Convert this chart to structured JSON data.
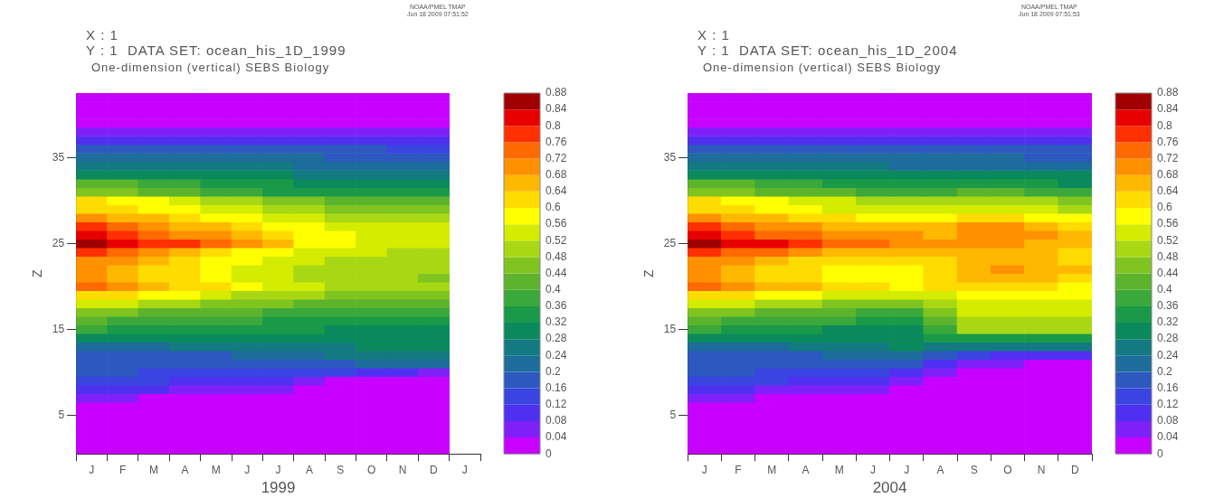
{
  "chart_data": [
    {
      "type": "heatmap",
      "title": "One-dimension (vertical) SEBS Biology",
      "xlabel": "1999",
      "ylabel": "Z",
      "annotations": [
        "X : 1",
        "Y : 1  DATA SET: ocean_his_1D_1999",
        "NOAA/PMEL TMAP",
        "Jun 18 2009 07:51:52"
      ],
      "categories": [
        "J",
        "F",
        "M",
        "A",
        "M",
        "J",
        "J",
        "A",
        "S",
        "O",
        "N",
        "D",
        "J"
      ],
      "y_categories": [
        null,
        null,
        null,
        null,
        null,
        null,
        null,
        "35",
        null,
        null,
        null,
        null,
        null,
        null,
        null,
        null,
        null,
        "25",
        null,
        null,
        null,
        null,
        null,
        null,
        null,
        null,
        null,
        "15",
        null,
        null,
        null,
        null,
        null,
        null,
        null,
        null,
        null,
        "5",
        null,
        null,
        null,
        null
      ],
      "clim": [
        0,
        0.88
      ],
      "cticks": [
        0,
        0.04,
        0.08,
        0.12,
        0.16,
        0.2,
        0.24,
        0.28,
        0.32,
        0.36,
        0.4,
        0.44,
        0.48,
        0.52,
        0.56,
        0.6,
        0.64,
        0.68,
        0.72,
        0.76,
        0.8,
        0.84,
        0.88
      ],
      "cells": [
        [
          0,
          0,
          0,
          0,
          0,
          0,
          0,
          0,
          0,
          0,
          0,
          0,
          null
        ],
        [
          0,
          0,
          0,
          0,
          0,
          0,
          0,
          0,
          0,
          0,
          0,
          0,
          null
        ],
        [
          0,
          0,
          0,
          0,
          0,
          0,
          0,
          0,
          0,
          0,
          0,
          0,
          null
        ],
        [
          0,
          0,
          0,
          0,
          0,
          0,
          0,
          0,
          0,
          0,
          0,
          0,
          null
        ],
        [
          0.04,
          0.04,
          0.04,
          0.04,
          0.04,
          0.04,
          0.04,
          0.04,
          0.04,
          0.04,
          0.04,
          0.04,
          null
        ],
        [
          0.1,
          0.1,
          0.1,
          0.1,
          0.1,
          0.08,
          0.08,
          0.08,
          0.08,
          0.08,
          0.08,
          0.08,
          null
        ],
        [
          0.16,
          0.16,
          0.16,
          0.16,
          0.16,
          0.16,
          0.16,
          0.16,
          0.16,
          0.16,
          0.12,
          0.12,
          null
        ],
        [
          0.2,
          0.2,
          0.2,
          0.2,
          0.2,
          0.2,
          0.2,
          0.2,
          0.18,
          0.18,
          0.16,
          0.16,
          null
        ],
        [
          0.24,
          0.24,
          0.24,
          0.24,
          0.24,
          0.24,
          0.24,
          0.22,
          0.22,
          0.2,
          0.2,
          0.2,
          null
        ],
        [
          0.3,
          0.28,
          0.28,
          0.28,
          0.28,
          0.28,
          0.28,
          0.26,
          0.26,
          0.24,
          0.24,
          0.24,
          null
        ],
        [
          0.42,
          0.4,
          0.38,
          0.36,
          0.34,
          0.32,
          0.32,
          0.3,
          0.3,
          0.28,
          0.28,
          0.28,
          null
        ],
        [
          0.46,
          0.44,
          0.42,
          0.4,
          0.38,
          0.36,
          0.34,
          0.34,
          0.32,
          0.32,
          0.32,
          0.32,
          null
        ],
        [
          0.6,
          0.58,
          0.56,
          0.52,
          0.5,
          0.48,
          0.46,
          0.44,
          0.42,
          0.42,
          0.4,
          0.4,
          null
        ],
        [
          0.62,
          0.6,
          0.58,
          0.56,
          0.54,
          0.52,
          0.5,
          0.48,
          0.46,
          0.46,
          0.44,
          0.44,
          null
        ],
        [
          0.68,
          0.66,
          0.64,
          0.6,
          0.58,
          0.56,
          0.54,
          0.52,
          0.5,
          0.48,
          0.48,
          0.48,
          null
        ],
        [
          0.76,
          0.74,
          0.7,
          0.66,
          0.64,
          0.6,
          0.58,
          0.56,
          0.54,
          0.52,
          0.52,
          0.52,
          null
        ],
        [
          0.8,
          0.78,
          0.74,
          0.7,
          0.68,
          0.64,
          0.6,
          0.58,
          0.56,
          0.54,
          0.52,
          0.52,
          null
        ],
        [
          0.86,
          0.82,
          0.78,
          0.76,
          0.72,
          0.68,
          0.64,
          0.58,
          0.56,
          0.54,
          0.52,
          0.52,
          null
        ],
        [
          0.76,
          0.74,
          0.7,
          0.66,
          0.62,
          0.58,
          0.56,
          0.54,
          0.52,
          0.52,
          0.5,
          0.5,
          null
        ],
        [
          0.7,
          0.68,
          0.64,
          0.6,
          0.58,
          0.56,
          0.54,
          0.52,
          0.5,
          0.5,
          0.48,
          0.48,
          null
        ],
        [
          0.68,
          0.66,
          0.62,
          0.6,
          0.56,
          0.54,
          0.52,
          0.5,
          0.5,
          0.48,
          0.48,
          0.48,
          null
        ],
        [
          0.68,
          0.66,
          0.62,
          0.6,
          0.56,
          0.54,
          0.52,
          0.5,
          0.5,
          0.48,
          0.48,
          0.46,
          null
        ],
        [
          0.72,
          0.7,
          0.66,
          0.62,
          0.6,
          0.58,
          0.54,
          0.52,
          0.5,
          0.5,
          0.48,
          0.48,
          null
        ],
        [
          0.62,
          0.6,
          0.58,
          0.56,
          0.52,
          0.5,
          0.48,
          0.48,
          0.46,
          0.46,
          0.44,
          0.44,
          null
        ],
        [
          0.54,
          0.52,
          0.5,
          0.48,
          0.46,
          0.44,
          0.44,
          0.42,
          0.42,
          0.4,
          0.4,
          0.4,
          null
        ],
        [
          0.44,
          0.44,
          0.42,
          0.42,
          0.4,
          0.4,
          0.38,
          0.38,
          0.38,
          0.36,
          0.36,
          0.36,
          null
        ],
        [
          0.4,
          0.38,
          0.38,
          0.36,
          0.36,
          0.36,
          0.34,
          0.34,
          0.34,
          0.32,
          0.32,
          0.32,
          null
        ],
        [
          0.36,
          0.34,
          0.34,
          0.32,
          0.32,
          0.32,
          0.32,
          0.32,
          0.3,
          0.3,
          0.3,
          0.3,
          null
        ],
        [
          0.3,
          0.3,
          0.28,
          0.28,
          0.28,
          0.28,
          0.28,
          0.28,
          0.28,
          0.28,
          0.28,
          0.28,
          null
        ],
        [
          0.22,
          0.22,
          0.22,
          0.24,
          0.24,
          0.24,
          0.24,
          0.26,
          0.26,
          0.28,
          0.28,
          0.28,
          null
        ],
        [
          0.16,
          0.16,
          0.18,
          0.18,
          0.18,
          0.2,
          0.2,
          0.22,
          0.24,
          0.26,
          0.26,
          0.26,
          null
        ],
        [
          0.16,
          0.16,
          0.16,
          0.16,
          0.16,
          0.16,
          0.16,
          0.18,
          0.18,
          0.2,
          0.2,
          0.2,
          null
        ],
        [
          0.16,
          0.16,
          0.14,
          0.14,
          0.14,
          0.14,
          0.12,
          0.12,
          0.12,
          0.08,
          0.08,
          0.06,
          null
        ],
        [
          0.12,
          0.12,
          0.12,
          0.1,
          0.1,
          0.1,
          0.08,
          0.04,
          0,
          0,
          0,
          0,
          null
        ],
        [
          0.1,
          0.1,
          0.08,
          0.06,
          0.06,
          0.04,
          0.04,
          0,
          0,
          0,
          0,
          0,
          null
        ],
        [
          0.04,
          0.04,
          0,
          0,
          0,
          0,
          0,
          0,
          0,
          0,
          0,
          0,
          null
        ],
        [
          0,
          0,
          0,
          0,
          0,
          0,
          0,
          0,
          0,
          0,
          0,
          0,
          null
        ],
        [
          0,
          0,
          0,
          0,
          0,
          0,
          0,
          0,
          0,
          0,
          0,
          0,
          null
        ],
        [
          0,
          0,
          0,
          0,
          0,
          0,
          0,
          0,
          0,
          0,
          0,
          0,
          null
        ],
        [
          0,
          0,
          0,
          0,
          0,
          0,
          0,
          0,
          0,
          0,
          0,
          0,
          null
        ],
        [
          0,
          0,
          0,
          0,
          0,
          0,
          0,
          0,
          0,
          0,
          0,
          0,
          null
        ],
        [
          0,
          0,
          0,
          0,
          0,
          0,
          0,
          0,
          0,
          0,
          0,
          0,
          null
        ]
      ]
    },
    {
      "type": "heatmap",
      "title": "One-dimension (vertical) SEBS Biology",
      "xlabel": "2004",
      "ylabel": "Z",
      "annotations": [
        "X : 1",
        "Y : 1  DATA SET: ocean_his_1D_2004",
        "NOAA/PMEL TMAP",
        "Jun 18 2009 07:51:53"
      ],
      "categories": [
        "J",
        "F",
        "M",
        "A",
        "M",
        "J",
        "J",
        "A",
        "S",
        "O",
        "N",
        "D"
      ],
      "y_categories": [
        null,
        null,
        null,
        null,
        null,
        null,
        null,
        "35",
        null,
        null,
        null,
        null,
        null,
        null,
        null,
        null,
        null,
        "25",
        null,
        null,
        null,
        null,
        null,
        null,
        null,
        null,
        null,
        "15",
        null,
        null,
        null,
        null,
        null,
        null,
        null,
        null,
        null,
        "5",
        null,
        null,
        null,
        null
      ],
      "clim": [
        0,
        0.88
      ],
      "cticks": [
        0,
        0.04,
        0.08,
        0.12,
        0.16,
        0.2,
        0.24,
        0.28,
        0.32,
        0.36,
        0.4,
        0.44,
        0.48,
        0.52,
        0.56,
        0.6,
        0.64,
        0.68,
        0.72,
        0.76,
        0.8,
        0.84,
        0.88
      ],
      "cells": [
        [
          0,
          0,
          0,
          0,
          0,
          0,
          0,
          0,
          0,
          0,
          0,
          0
        ],
        [
          0,
          0,
          0,
          0,
          0,
          0,
          0,
          0,
          0,
          0,
          0,
          0
        ],
        [
          0,
          0,
          0,
          0,
          0,
          0,
          0,
          0,
          0,
          0,
          0,
          0
        ],
        [
          0,
          0,
          0,
          0,
          0,
          0,
          0,
          0,
          0,
          0,
          0,
          0
        ],
        [
          0.04,
          0.04,
          0.04,
          0.04,
          0.04,
          0.04,
          0.04,
          0.04,
          0.04,
          0.04,
          0.04,
          0.04
        ],
        [
          0.1,
          0.1,
          0.1,
          0.1,
          0.1,
          0.1,
          0.1,
          0.1,
          0.08,
          0.08,
          0.1,
          0.1
        ],
        [
          0.16,
          0.16,
          0.16,
          0.16,
          0.16,
          0.16,
          0.16,
          0.16,
          0.16,
          0.16,
          0.16,
          0.16
        ],
        [
          0.2,
          0.2,
          0.2,
          0.2,
          0.2,
          0.2,
          0.2,
          0.2,
          0.2,
          0.2,
          0.18,
          0.18
        ],
        [
          0.24,
          0.24,
          0.24,
          0.24,
          0.24,
          0.24,
          0.22,
          0.22,
          0.22,
          0.22,
          0.22,
          0.22
        ],
        [
          0.3,
          0.28,
          0.28,
          0.28,
          0.28,
          0.28,
          0.28,
          0.28,
          0.28,
          0.28,
          0.28,
          0.28
        ],
        [
          0.42,
          0.4,
          0.38,
          0.36,
          0.34,
          0.32,
          0.32,
          0.32,
          0.34,
          0.34,
          0.32,
          0.3
        ],
        [
          0.46,
          0.44,
          0.42,
          0.4,
          0.4,
          0.38,
          0.38,
          0.38,
          0.4,
          0.4,
          0.38,
          0.36
        ],
        [
          0.6,
          0.58,
          0.56,
          0.54,
          0.52,
          0.5,
          0.48,
          0.48,
          0.5,
          0.5,
          0.48,
          0.44
        ],
        [
          0.62,
          0.6,
          0.58,
          0.56,
          0.54,
          0.52,
          0.52,
          0.52,
          0.54,
          0.54,
          0.52,
          0.5
        ],
        [
          0.68,
          0.66,
          0.64,
          0.62,
          0.6,
          0.58,
          0.58,
          0.58,
          0.6,
          0.6,
          0.58,
          0.56
        ],
        [
          0.78,
          0.74,
          0.7,
          0.68,
          0.66,
          0.64,
          0.64,
          0.64,
          0.68,
          0.68,
          0.66,
          0.62
        ],
        [
          0.8,
          0.78,
          0.74,
          0.72,
          0.7,
          0.68,
          0.68,
          0.66,
          0.7,
          0.7,
          0.68,
          0.64
        ],
        [
          0.86,
          0.82,
          0.8,
          0.76,
          0.74,
          0.72,
          0.7,
          0.68,
          0.7,
          0.7,
          0.66,
          0.64
        ],
        [
          0.78,
          0.74,
          0.72,
          0.68,
          0.66,
          0.64,
          0.64,
          0.64,
          0.66,
          0.66,
          0.64,
          0.62
        ],
        [
          0.7,
          0.68,
          0.64,
          0.62,
          0.6,
          0.6,
          0.6,
          0.62,
          0.66,
          0.66,
          0.64,
          0.62
        ],
        [
          0.68,
          0.66,
          0.62,
          0.6,
          0.58,
          0.56,
          0.58,
          0.62,
          0.66,
          0.7,
          0.66,
          0.64
        ],
        [
          0.68,
          0.66,
          0.62,
          0.6,
          0.58,
          0.56,
          0.58,
          0.62,
          0.66,
          0.66,
          0.64,
          0.62
        ],
        [
          0.72,
          0.7,
          0.66,
          0.64,
          0.62,
          0.6,
          0.58,
          0.6,
          0.62,
          0.62,
          0.6,
          0.58
        ],
        [
          0.62,
          0.6,
          0.58,
          0.56,
          0.54,
          0.54,
          0.52,
          0.54,
          0.58,
          0.58,
          0.56,
          0.56
        ],
        [
          0.54,
          0.52,
          0.5,
          0.48,
          0.46,
          0.46,
          0.44,
          0.48,
          0.54,
          0.54,
          0.54,
          0.54
        ],
        [
          0.44,
          0.44,
          0.42,
          0.4,
          0.4,
          0.38,
          0.38,
          0.44,
          0.52,
          0.52,
          0.52,
          0.52
        ],
        [
          0.4,
          0.38,
          0.38,
          0.36,
          0.36,
          0.34,
          0.34,
          0.4,
          0.5,
          0.5,
          0.5,
          0.5
        ],
        [
          0.36,
          0.34,
          0.32,
          0.32,
          0.3,
          0.3,
          0.3,
          0.38,
          0.48,
          0.48,
          0.48,
          0.48
        ],
        [
          0.3,
          0.3,
          0.28,
          0.28,
          0.28,
          0.28,
          0.28,
          0.32,
          0.32,
          0.32,
          0.32,
          0.32
        ],
        [
          0.22,
          0.22,
          0.22,
          0.24,
          0.24,
          0.26,
          0.28,
          0.26,
          0.24,
          0.24,
          0.24,
          0.24
        ],
        [
          0.16,
          0.16,
          0.18,
          0.18,
          0.2,
          0.2,
          0.22,
          0.16,
          0.12,
          0.08,
          0.08,
          0.08
        ],
        [
          0.16,
          0.16,
          0.16,
          0.16,
          0.16,
          0.16,
          0.16,
          0.08,
          0.04,
          0.04,
          0,
          0
        ],
        [
          0.16,
          0.16,
          0.14,
          0.14,
          0.14,
          0.12,
          0.08,
          0.04,
          0,
          0,
          0,
          0
        ],
        [
          0.12,
          0.12,
          0.12,
          0.1,
          0.1,
          0.08,
          0.04,
          0,
          0,
          0,
          0,
          0
        ],
        [
          0.1,
          0.1,
          0.06,
          0.06,
          0.04,
          0.04,
          0,
          0,
          0,
          0,
          0,
          0
        ],
        [
          0.04,
          0.04,
          0,
          0,
          0,
          0,
          0,
          0,
          0,
          0,
          0,
          0
        ],
        [
          0,
          0,
          0,
          0,
          0,
          0,
          0,
          0,
          0,
          0,
          0,
          0
        ],
        [
          0,
          0,
          0,
          0,
          0,
          0,
          0,
          0,
          0,
          0,
          0,
          0
        ],
        [
          0,
          0,
          0,
          0,
          0,
          0,
          0,
          0,
          0,
          0,
          0,
          0
        ],
        [
          0,
          0,
          0,
          0,
          0,
          0,
          0,
          0,
          0,
          0,
          0,
          0
        ],
        [
          0,
          0,
          0,
          0,
          0,
          0,
          0,
          0,
          0,
          0,
          0,
          0
        ],
        [
          0,
          0,
          0,
          0,
          0,
          0,
          0,
          0,
          0,
          0,
          0,
          0
        ]
      ]
    }
  ]
}
